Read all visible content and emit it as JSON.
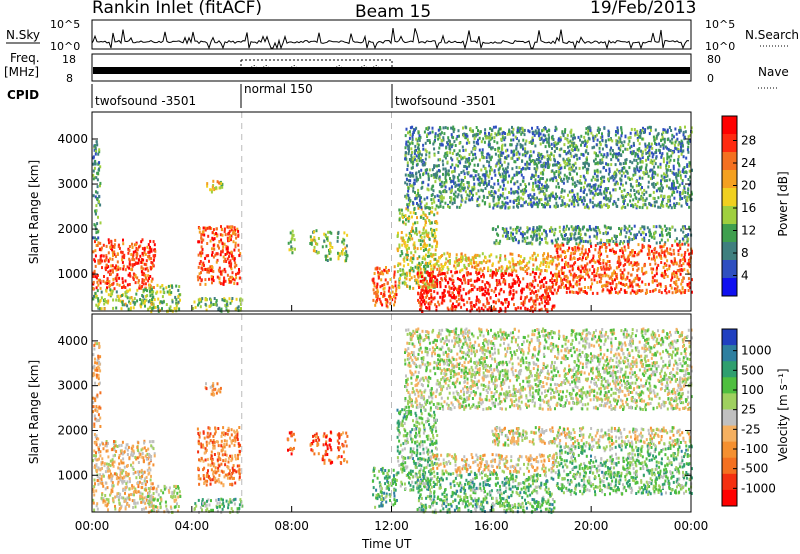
{
  "header": {
    "title": "Rankin Inlet (fitACF)",
    "beam": "Beam 15",
    "date": "19/Feb/2013"
  },
  "top_panels": {
    "nsky_label": "N.Sky",
    "nsky_ticks": [
      "10^5",
      "10^0"
    ],
    "nsearch_label": "N.Search",
    "freq_label": "Freq.",
    "freq_unit": "[MHz]",
    "freq_ticks": [
      "18",
      "8"
    ],
    "nave_label": "Nave",
    "nave_ticks": [
      "80",
      "0"
    ],
    "cpid_label": "CPID",
    "cpid_segments": [
      {
        "label": "twofsound -3501",
        "start_h": 0,
        "end_h": 6
      },
      {
        "label": "normal 150",
        "start_h": 6,
        "end_h": 12
      },
      {
        "label": "twofsound -3501",
        "start_h": 12,
        "end_h": 24
      }
    ]
  },
  "chart_data": [
    {
      "type": "heatmap",
      "name": "power",
      "xlabel": "",
      "ylabel": "Slant Range [km]",
      "xlim": [
        0,
        24
      ],
      "ylim": [
        180,
        4600
      ],
      "yticks": [
        1000,
        2000,
        3000,
        4000
      ],
      "colorbar": {
        "label": "Power [dB]",
        "range": [
          0,
          32
        ],
        "ticks": [
          "4",
          "8",
          "12",
          "16",
          "20",
          "24",
          "28"
        ],
        "colors": [
          "#1010f0",
          "#2f4fc0",
          "#3f7f7f",
          "#3f9f4f",
          "#9fcf3f",
          "#f0d020",
          "#f4a020",
          "#f47020",
          "#ff2a10",
          "#ff0000"
        ]
      },
      "regions": [
        {
          "t0": 0.0,
          "t1": 2.5,
          "r0": 700,
          "r1": 1800,
          "level": 0.82
        },
        {
          "t0": 0.0,
          "t1": 2.5,
          "r0": 250,
          "r1": 700,
          "level": 0.45
        },
        {
          "t0": 0.0,
          "t1": 0.3,
          "r0": 1800,
          "r1": 4000,
          "level": 0.3
        },
        {
          "t0": 2.2,
          "t1": 3.5,
          "r0": 200,
          "r1": 800,
          "level": 0.45
        },
        {
          "t0": 4.2,
          "t1": 5.9,
          "r0": 800,
          "r1": 2100,
          "level": 0.8
        },
        {
          "t0": 4.5,
          "t1": 5.2,
          "r0": 2800,
          "r1": 3100,
          "level": 0.55
        },
        {
          "t0": 4.0,
          "t1": 6.0,
          "r0": 200,
          "r1": 500,
          "level": 0.4
        },
        {
          "t0": 7.8,
          "t1": 8.1,
          "r0": 1500,
          "r1": 2000,
          "level": 0.45
        },
        {
          "t0": 8.7,
          "t1": 9.1,
          "r0": 1500,
          "r1": 2000,
          "level": 0.45
        },
        {
          "t0": 9.2,
          "t1": 9.6,
          "r0": 1300,
          "r1": 2000,
          "level": 0.4
        },
        {
          "t0": 9.8,
          "t1": 10.2,
          "r0": 1300,
          "r1": 2000,
          "level": 0.45
        },
        {
          "t0": 11.2,
          "t1": 12.2,
          "r0": 300,
          "r1": 1200,
          "level": 0.75
        },
        {
          "t0": 12.2,
          "t1": 13.8,
          "r0": 700,
          "r1": 2500,
          "level": 0.5
        },
        {
          "t0": 13.0,
          "t1": 18.5,
          "r0": 200,
          "r1": 1100,
          "level": 0.88
        },
        {
          "t0": 13.5,
          "t1": 18.5,
          "r0": 1100,
          "r1": 1500,
          "level": 0.6
        },
        {
          "t0": 16.0,
          "t1": 24.0,
          "r0": 1700,
          "r1": 2100,
          "level": 0.3
        },
        {
          "t0": 18.5,
          "t1": 24.0,
          "r0": 600,
          "r1": 1700,
          "level": 0.78
        },
        {
          "t0": 12.5,
          "t1": 24.0,
          "r0": 2500,
          "r1": 4300,
          "level": 0.3
        }
      ]
    },
    {
      "type": "heatmap",
      "name": "velocity",
      "xlabel": "Time UT",
      "ylabel": "Slant Range [km]",
      "xlim": [
        0,
        24
      ],
      "ylim": [
        180,
        4600
      ],
      "yticks": [
        1000,
        2000,
        3000,
        4000
      ],
      "xticks": [
        "00:00",
        "04:00",
        "08:00",
        "12:00",
        "16:00",
        "20:00",
        "00:00"
      ],
      "colorbar": {
        "label": "Velocity [m s⁻¹]",
        "range": [
          -1200,
          1200
        ],
        "ticks": [
          "1000",
          "500",
          "100",
          "25",
          "-25",
          "-100",
          "-500",
          "-1000"
        ],
        "colors": [
          "#2040c0",
          "#2e7fa0",
          "#2f9f6f",
          "#4fbf3f",
          "#9fd05f",
          "#c0c0c0",
          "#f5b060",
          "#f59030",
          "#f47020",
          "#f43010",
          "#ff0000"
        ]
      },
      "regions": [
        {
          "t0": 0.0,
          "t1": 2.5,
          "r0": 700,
          "r1": 1800,
          "level": 0.58
        },
        {
          "t0": 0.0,
          "t1": 2.5,
          "r0": 250,
          "r1": 700,
          "level": 0.55
        },
        {
          "t0": 0.0,
          "t1": 0.3,
          "r0": 1800,
          "r1": 4000,
          "level": 0.62
        },
        {
          "t0": 2.2,
          "t1": 3.5,
          "r0": 200,
          "r1": 800,
          "level": 0.45
        },
        {
          "t0": 4.2,
          "t1": 5.9,
          "r0": 800,
          "r1": 2100,
          "level": 0.72
        },
        {
          "t0": 4.5,
          "t1": 5.2,
          "r0": 2800,
          "r1": 3100,
          "level": 0.7
        },
        {
          "t0": 4.0,
          "t1": 6.0,
          "r0": 200,
          "r1": 500,
          "level": 0.35
        },
        {
          "t0": 7.8,
          "t1": 8.1,
          "r0": 1500,
          "r1": 2000,
          "level": 0.85
        },
        {
          "t0": 8.7,
          "t1": 9.1,
          "r0": 1500,
          "r1": 2000,
          "level": 0.8
        },
        {
          "t0": 9.2,
          "t1": 9.6,
          "r0": 1300,
          "r1": 2000,
          "level": 0.85
        },
        {
          "t0": 9.8,
          "t1": 10.2,
          "r0": 1300,
          "r1": 2000,
          "level": 0.8
        },
        {
          "t0": 11.2,
          "t1": 12.2,
          "r0": 300,
          "r1": 1200,
          "level": 0.3
        },
        {
          "t0": 12.2,
          "t1": 13.8,
          "r0": 700,
          "r1": 2500,
          "level": 0.35
        },
        {
          "t0": 13.0,
          "t1": 18.5,
          "r0": 200,
          "r1": 1100,
          "level": 0.32
        },
        {
          "t0": 13.5,
          "t1": 18.5,
          "r0": 1100,
          "r1": 1500,
          "level": 0.55
        },
        {
          "t0": 16.0,
          "t1": 24.0,
          "r0": 1700,
          "r1": 2100,
          "level": 0.5
        },
        {
          "t0": 18.5,
          "t1": 24.0,
          "r0": 600,
          "r1": 1700,
          "level": 0.35
        },
        {
          "t0": 12.5,
          "t1": 24.0,
          "r0": 2500,
          "r1": 4300,
          "level": 0.45
        }
      ]
    }
  ]
}
